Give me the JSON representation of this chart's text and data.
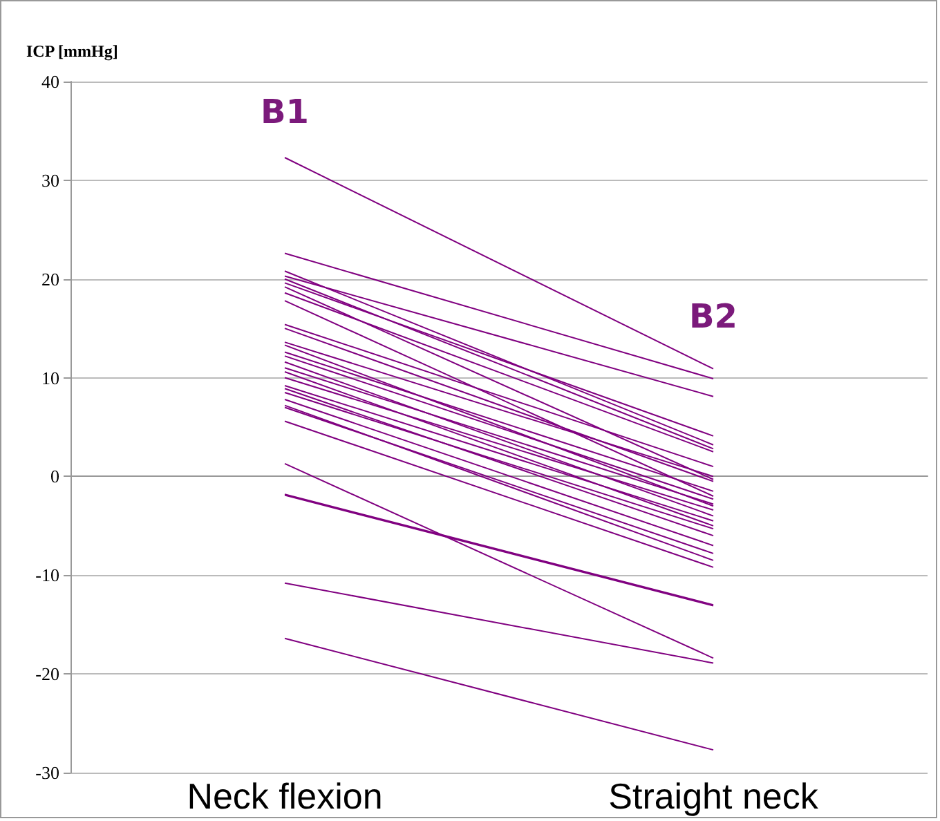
{
  "chart_data": {
    "type": "line",
    "ylabel": "ICP [mmHg]",
    "categories": [
      "Neck flexion",
      "Straight neck"
    ],
    "ylim": [
      -30,
      40
    ],
    "yticks": [
      -30,
      -20,
      -10,
      0,
      10,
      20,
      30,
      40
    ],
    "grid": "y",
    "marker": "none",
    "line_style": "solid",
    "annotations": [
      "B1",
      "B2"
    ],
    "series": [
      {
        "color": "#800080",
        "values": [
          32.3,
          10.9
        ]
      },
      {
        "color": "#800080",
        "values": [
          22.6,
          9.9
        ]
      },
      {
        "color": "#800080",
        "values": [
          20.8,
          3.2
        ]
      },
      {
        "color": "#800080",
        "values": [
          20.3,
          8.1
        ]
      },
      {
        "color": "#800080",
        "values": [
          20,
          2.8
        ]
      },
      {
        "color": "#800080",
        "values": [
          19.6,
          4.1
        ]
      },
      {
        "color": "#800080",
        "values": [
          19.2,
          -0.3
        ]
      },
      {
        "color": "#800080",
        "values": [
          18.6,
          2.5
        ]
      },
      {
        "color": "#800080",
        "values": [
          17.8,
          -2
        ]
      },
      {
        "color": "#800080",
        "values": [
          15.4,
          1
        ]
      },
      {
        "color": "#800080",
        "values": [
          15,
          -0.5
        ]
      },
      {
        "color": "#800080",
        "values": [
          13.6,
          0
        ]
      },
      {
        "color": "#800080",
        "values": [
          13.3,
          -3
        ]
      },
      {
        "color": "#800080",
        "values": [
          12.6,
          -1.5
        ]
      },
      {
        "color": "#800080",
        "values": [
          12.2,
          -2.3
        ]
      },
      {
        "color": "#800080",
        "values": [
          11.6,
          -4
        ]
      },
      {
        "color": "#800080",
        "values": [
          11,
          -2.8
        ]
      },
      {
        "color": "#800080",
        "values": [
          10.6,
          -5
        ]
      },
      {
        "color": "#800080",
        "values": [
          10,
          -3.4
        ]
      },
      {
        "color": "#800080",
        "values": [
          9.2,
          -4.5
        ]
      },
      {
        "color": "#800080",
        "values": [
          8.9,
          -6
        ]
      },
      {
        "color": "#800080",
        "values": [
          8.5,
          -5.3
        ]
      },
      {
        "color": "#800080",
        "values": [
          7.8,
          -7
        ]
      },
      {
        "color": "#800080",
        "values": [
          7.2,
          -8.5
        ]
      },
      {
        "color": "#800080",
        "values": [
          7,
          -7.8
        ]
      },
      {
        "color": "#800080",
        "values": [
          5.6,
          -9.2
        ]
      },
      {
        "color": "#800080",
        "values": [
          1.3,
          -18.4
        ]
      },
      {
        "color": "#800080",
        "values": [
          -1.8,
          -13
        ]
      },
      {
        "color": "#800080",
        "values": [
          -1.9,
          -13.1
        ]
      },
      {
        "color": "#800080",
        "values": [
          -10.8,
          -18.9
        ]
      },
      {
        "color": "#800080",
        "values": [
          -16.4,
          -27.7
        ]
      }
    ]
  }
}
